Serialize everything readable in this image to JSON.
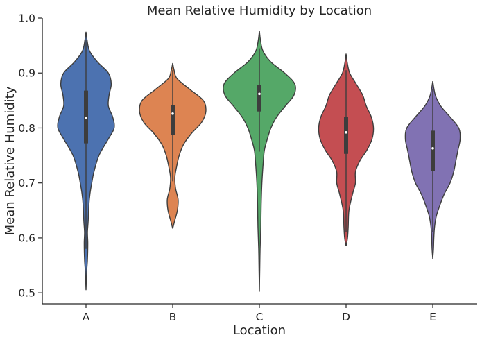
{
  "chart_data": {
    "type": "violin",
    "title": "Mean Relative Humidity by Location",
    "xlabel": "Location",
    "ylabel": "Mean Relative Humidity",
    "ylim": [
      0.48,
      1.0
    ],
    "yticks": [
      0.5,
      0.6,
      0.7,
      0.8,
      0.9,
      1.0
    ],
    "ytick_labels": [
      "0.5",
      "0.6",
      "0.7",
      "0.8",
      "0.9",
      "1.0"
    ],
    "categories": [
      "A",
      "B",
      "C",
      "D",
      "E"
    ],
    "colors": [
      "#4c72b0",
      "#dd8452",
      "#55a868",
      "#c44e52",
      "#8172b3"
    ],
    "grid": false,
    "violins": [
      {
        "category": "A",
        "min": 0.505,
        "max": 0.975,
        "q1": 0.772,
        "median": 0.818,
        "q3": 0.868,
        "whisker_low": 0.58,
        "whisker_high": 0.96,
        "profile": [
          [
            0.505,
            0.0
          ],
          [
            0.54,
            0.02
          ],
          [
            0.56,
            0.04
          ],
          [
            0.59,
            0.05
          ],
          [
            0.61,
            0.04
          ],
          [
            0.63,
            0.06
          ],
          [
            0.66,
            0.08
          ],
          [
            0.68,
            0.11
          ],
          [
            0.7,
            0.16
          ],
          [
            0.72,
            0.22
          ],
          [
            0.75,
            0.36
          ],
          [
            0.78,
            0.62
          ],
          [
            0.8,
            0.78
          ],
          [
            0.82,
            0.74
          ],
          [
            0.84,
            0.62
          ],
          [
            0.86,
            0.64
          ],
          [
            0.88,
            0.7
          ],
          [
            0.9,
            0.62
          ],
          [
            0.92,
            0.32
          ],
          [
            0.94,
            0.1
          ],
          [
            0.96,
            0.03
          ],
          [
            0.975,
            0.0
          ]
        ]
      },
      {
        "category": "B",
        "min": 0.617,
        "max": 0.918,
        "q1": 0.787,
        "median": 0.826,
        "q3": 0.842,
        "whisker_low": 0.703,
        "whisker_high": 0.905,
        "profile": [
          [
            0.617,
            0.0
          ],
          [
            0.63,
            0.05
          ],
          [
            0.65,
            0.13
          ],
          [
            0.67,
            0.15
          ],
          [
            0.69,
            0.08
          ],
          [
            0.71,
            0.06
          ],
          [
            0.73,
            0.11
          ],
          [
            0.75,
            0.18
          ],
          [
            0.77,
            0.3
          ],
          [
            0.79,
            0.52
          ],
          [
            0.81,
            0.8
          ],
          [
            0.83,
            0.92
          ],
          [
            0.85,
            0.85
          ],
          [
            0.87,
            0.48
          ],
          [
            0.89,
            0.12
          ],
          [
            0.905,
            0.04
          ],
          [
            0.918,
            0.0
          ]
        ]
      },
      {
        "category": "C",
        "min": 0.502,
        "max": 0.977,
        "q1": 0.83,
        "median": 0.862,
        "q3": 0.878,
        "whisker_low": 0.757,
        "whisker_high": 0.945,
        "profile": [
          [
            0.502,
            0.0
          ],
          [
            0.54,
            0.01
          ],
          [
            0.58,
            0.02
          ],
          [
            0.62,
            0.04
          ],
          [
            0.66,
            0.05
          ],
          [
            0.7,
            0.07
          ],
          [
            0.74,
            0.11
          ],
          [
            0.76,
            0.14
          ],
          [
            0.78,
            0.22
          ],
          [
            0.8,
            0.32
          ],
          [
            0.82,
            0.48
          ],
          [
            0.84,
            0.72
          ],
          [
            0.86,
            0.96
          ],
          [
            0.88,
            0.98
          ],
          [
            0.9,
            0.7
          ],
          [
            0.92,
            0.32
          ],
          [
            0.94,
            0.1
          ],
          [
            0.96,
            0.03
          ],
          [
            0.977,
            0.0
          ]
        ]
      },
      {
        "category": "D",
        "min": 0.585,
        "max": 0.935,
        "q1": 0.753,
        "median": 0.792,
        "q3": 0.82,
        "whisker_low": 0.61,
        "whisker_high": 0.905,
        "profile": [
          [
            0.585,
            0.0
          ],
          [
            0.6,
            0.04
          ],
          [
            0.62,
            0.06
          ],
          [
            0.65,
            0.08
          ],
          [
            0.68,
            0.18
          ],
          [
            0.7,
            0.26
          ],
          [
            0.72,
            0.26
          ],
          [
            0.74,
            0.38
          ],
          [
            0.76,
            0.58
          ],
          [
            0.78,
            0.72
          ],
          [
            0.8,
            0.76
          ],
          [
            0.82,
            0.7
          ],
          [
            0.84,
            0.56
          ],
          [
            0.86,
            0.46
          ],
          [
            0.88,
            0.28
          ],
          [
            0.9,
            0.1
          ],
          [
            0.92,
            0.03
          ],
          [
            0.935,
            0.0
          ]
        ]
      },
      {
        "category": "E",
        "min": 0.562,
        "max": 0.885,
        "q1": 0.722,
        "median": 0.763,
        "q3": 0.795,
        "whisker_low": 0.61,
        "whisker_high": 0.87,
        "profile": [
          [
            0.562,
            0.0
          ],
          [
            0.58,
            0.02
          ],
          [
            0.6,
            0.03
          ],
          [
            0.62,
            0.05
          ],
          [
            0.64,
            0.1
          ],
          [
            0.66,
            0.2
          ],
          [
            0.68,
            0.32
          ],
          [
            0.7,
            0.48
          ],
          [
            0.72,
            0.58
          ],
          [
            0.74,
            0.64
          ],
          [
            0.76,
            0.7
          ],
          [
            0.78,
            0.76
          ],
          [
            0.8,
            0.72
          ],
          [
            0.82,
            0.48
          ],
          [
            0.84,
            0.22
          ],
          [
            0.86,
            0.07
          ],
          [
            0.885,
            0.0
          ]
        ]
      }
    ]
  }
}
